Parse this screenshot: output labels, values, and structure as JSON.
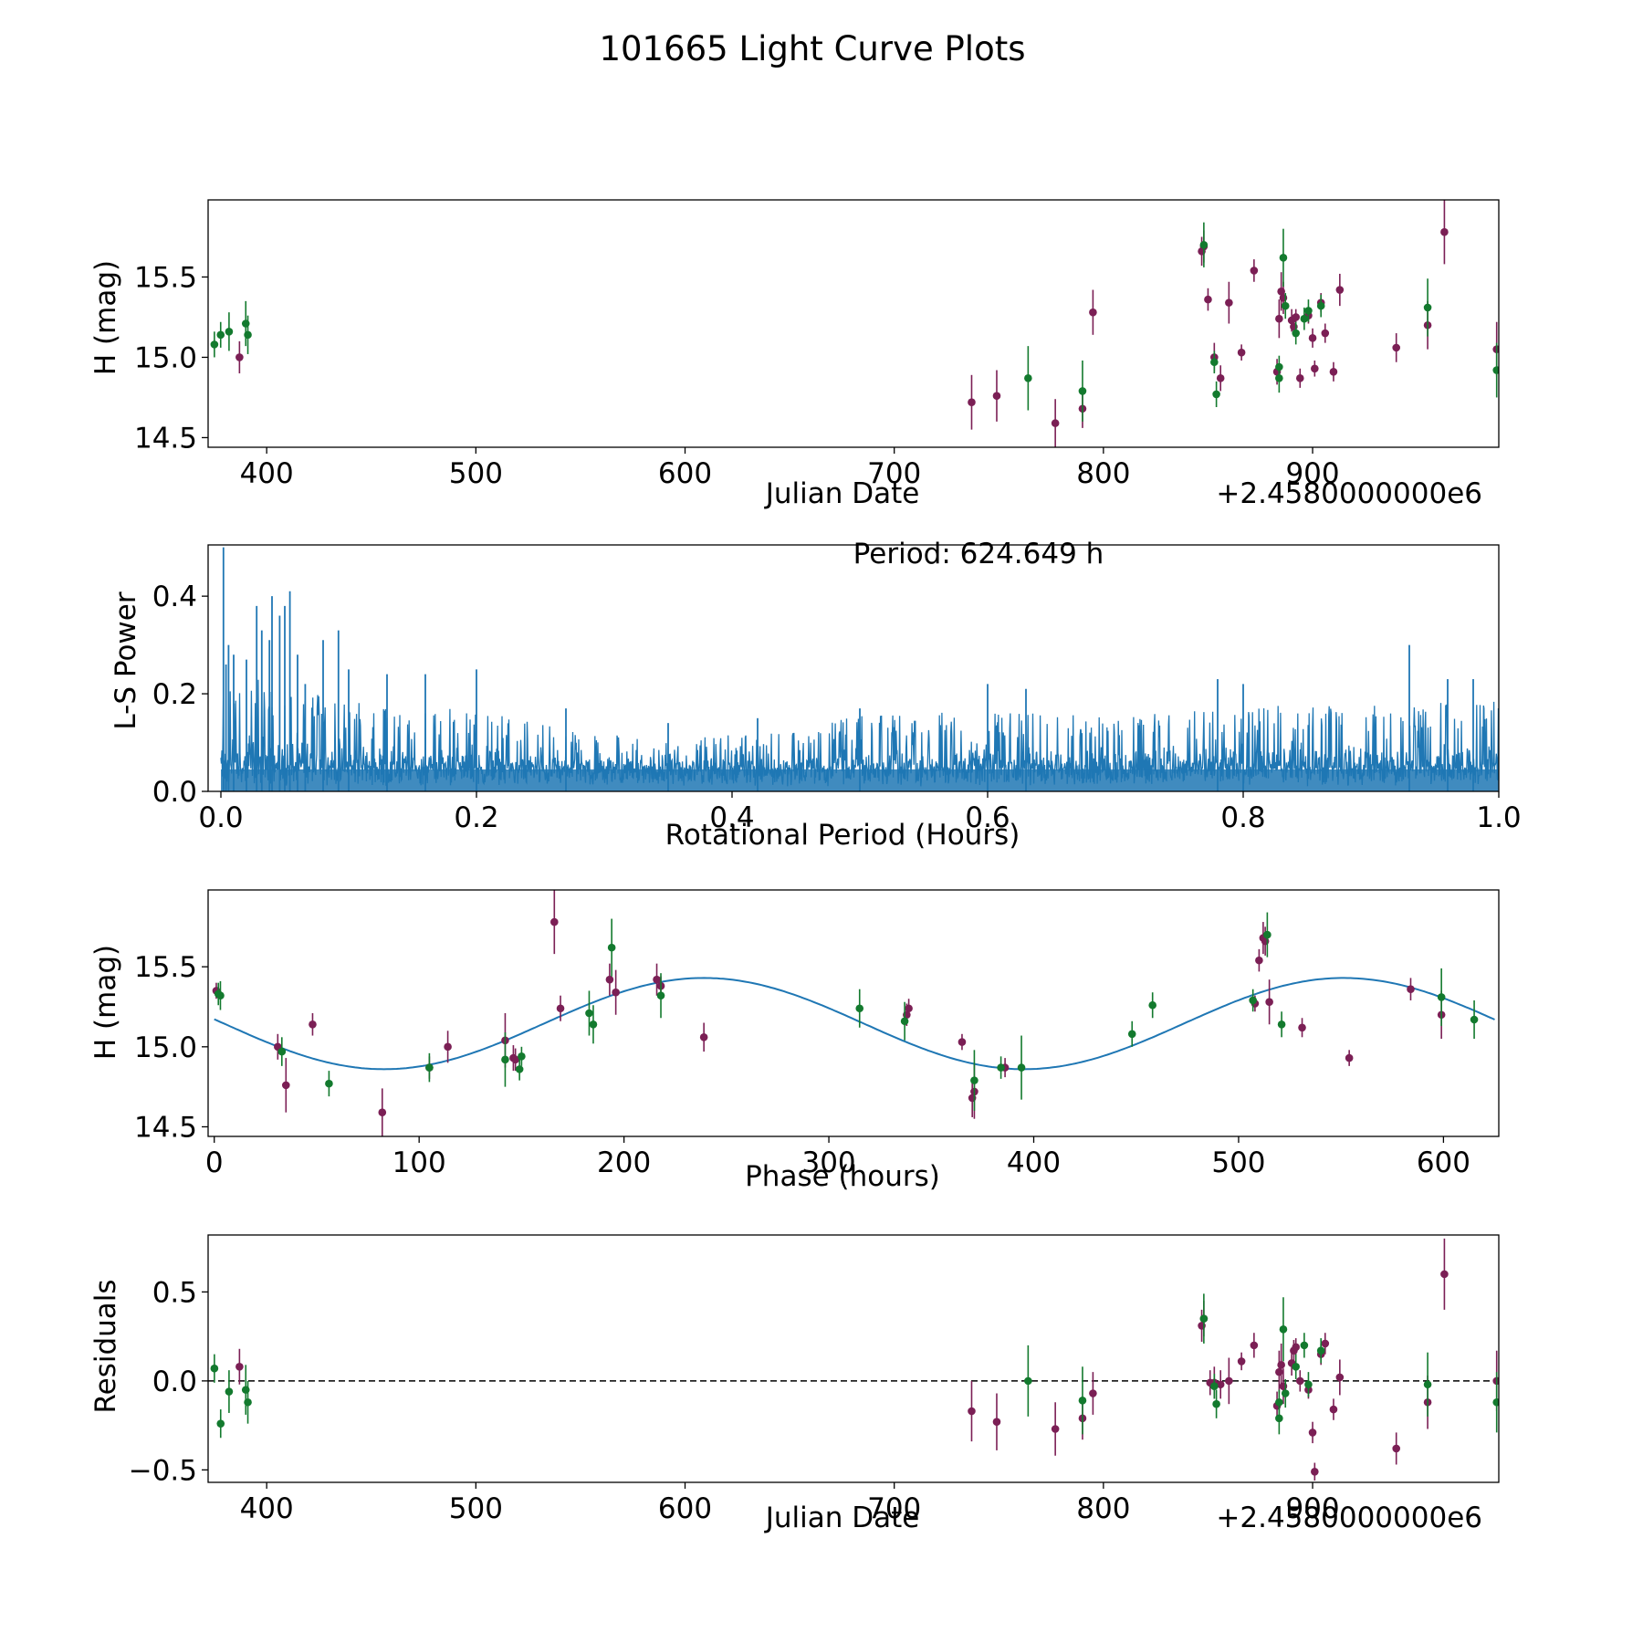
{
  "title": "101665 Light Curve Plots",
  "colors": {
    "band_a": "#7b1f55",
    "band_b": "#137a2e",
    "fit": "#1f77b4",
    "periodogram": "#1f77b4",
    "axis": "#000000"
  },
  "chart_data": [
    {
      "type": "scatter",
      "id": "lightcurve",
      "title": "",
      "xlabel": "Julian Date",
      "ylabel": "H (mag)",
      "offset_label": "+2.4580000000e6",
      "xlim": [
        372,
        989
      ],
      "ylim": [
        14.44,
        15.98
      ],
      "xticks": [
        400,
        500,
        600,
        700,
        800,
        900
      ],
      "yticks": [
        14.5,
        15.0,
        15.5
      ],
      "ytick_labels": [
        "14.5",
        "15.0",
        "15.5"
      ],
      "series": [
        {
          "name": "band_a",
          "color": "#7b1f55",
          "points": [
            [
              387,
              15.0,
              0.1
            ],
            [
              737,
              14.72,
              0.17
            ],
            [
              749,
              14.76,
              0.16
            ],
            [
              777,
              14.59,
              0.15
            ],
            [
              790,
              14.68,
              0.12
            ],
            [
              795,
              15.28,
              0.14
            ],
            [
              847,
              15.66,
              0.09
            ],
            [
              848,
              15.69,
              0.1
            ],
            [
              850,
              15.36,
              0.07
            ],
            [
              853,
              15.0,
              0.09
            ],
            [
              856,
              14.87,
              0.08
            ],
            [
              860,
              15.34,
              0.13
            ],
            [
              866,
              15.03,
              0.05
            ],
            [
              872,
              15.54,
              0.07
            ],
            [
              883,
              14.91,
              0.08
            ],
            [
              884,
              15.24,
              0.12
            ],
            [
              885,
              15.41,
              0.12
            ],
            [
              886,
              15.37,
              0.1
            ],
            [
              890,
              15.23,
              0.07
            ],
            [
              891,
              15.19,
              0.06
            ],
            [
              892,
              15.25,
              0.05
            ],
            [
              894,
              14.87,
              0.06
            ],
            [
              898,
              15.26,
              0.05
            ],
            [
              900,
              15.12,
              0.06
            ],
            [
              901,
              14.93,
              0.05
            ],
            [
              904,
              15.34,
              0.06
            ],
            [
              906,
              15.15,
              0.06
            ],
            [
              910,
              14.91,
              0.06
            ],
            [
              913,
              15.42,
              0.1
            ],
            [
              940,
              15.06,
              0.09
            ],
            [
              955,
              15.2,
              0.15
            ],
            [
              963,
              15.78,
              0.2
            ],
            [
              988,
              15.05,
              0.17
            ]
          ]
        },
        {
          "name": "band_b",
          "color": "#137a2e",
          "points": [
            [
              375,
              15.08,
              0.08
            ],
            [
              378,
              15.14,
              0.08
            ],
            [
              382,
              15.16,
              0.12
            ],
            [
              390,
              15.21,
              0.14
            ],
            [
              391,
              15.14,
              0.12
            ],
            [
              764,
              14.87,
              0.2
            ],
            [
              790,
              14.79,
              0.19
            ],
            [
              848,
              15.7,
              0.14
            ],
            [
              853,
              14.97,
              0.07
            ],
            [
              854,
              14.77,
              0.08
            ],
            [
              884,
              14.87,
              0.09
            ],
            [
              884,
              14.94,
              0.07
            ],
            [
              886,
              15.62,
              0.18
            ],
            [
              887,
              15.32,
              0.08
            ],
            [
              892,
              15.15,
              0.07
            ],
            [
              896,
              15.24,
              0.07
            ],
            [
              898,
              15.29,
              0.07
            ],
            [
              904,
              15.32,
              0.07
            ],
            [
              955,
              15.31,
              0.18
            ],
            [
              988,
              14.92,
              0.17
            ]
          ]
        }
      ]
    },
    {
      "type": "line",
      "id": "periodogram",
      "title": "",
      "xlabel": "Rotational Period (Hours)",
      "ylabel": "L-S Power",
      "annotation": "Period: 624.649 h",
      "xlim": [
        -0.01,
        1.0
      ],
      "ylim": [
        0,
        0.505
      ],
      "xticks": [
        0.0,
        0.2,
        0.4,
        0.6,
        0.8,
        1.0
      ],
      "xtick_labels": [
        "0.0",
        "0.2",
        "0.4",
        "0.6",
        "0.8",
        "1.0"
      ],
      "yticks": [
        0.0,
        0.2,
        0.4
      ],
      "ytick_labels": [
        "0.0",
        "0.2",
        "0.4"
      ],
      "peaks": [
        [
          0.002,
          0.5
        ],
        [
          0.004,
          0.26
        ],
        [
          0.006,
          0.3
        ],
        [
          0.01,
          0.28
        ],
        [
          0.02,
          0.27
        ],
        [
          0.028,
          0.38
        ],
        [
          0.032,
          0.33
        ],
        [
          0.038,
          0.31
        ],
        [
          0.04,
          0.4
        ],
        [
          0.046,
          0.36
        ],
        [
          0.05,
          0.38
        ],
        [
          0.054,
          0.41
        ],
        [
          0.06,
          0.28
        ],
        [
          0.066,
          0.22
        ],
        [
          0.08,
          0.31
        ],
        [
          0.092,
          0.33
        ],
        [
          0.1,
          0.25
        ],
        [
          0.13,
          0.24
        ],
        [
          0.16,
          0.24
        ],
        [
          0.2,
          0.25
        ],
        [
          0.27,
          0.17
        ],
        [
          0.35,
          0.14
        ],
        [
          0.42,
          0.15
        ],
        [
          0.5,
          0.17
        ],
        [
          0.6,
          0.22
        ],
        [
          0.63,
          0.21
        ],
        [
          0.78,
          0.23
        ],
        [
          0.8,
          0.22
        ],
        [
          0.93,
          0.3
        ],
        [
          0.96,
          0.23
        ],
        [
          0.98,
          0.23
        ]
      ],
      "envelope": [
        [
          0.0,
          0.22
        ],
        [
          0.05,
          0.2
        ],
        [
          0.1,
          0.17
        ],
        [
          0.2,
          0.15
        ],
        [
          0.3,
          0.11
        ],
        [
          0.35,
          0.09
        ],
        [
          0.4,
          0.11
        ],
        [
          0.5,
          0.14
        ],
        [
          0.6,
          0.15
        ],
        [
          0.7,
          0.14
        ],
        [
          0.8,
          0.16
        ],
        [
          0.9,
          0.16
        ],
        [
          1.0,
          0.17
        ]
      ]
    },
    {
      "type": "scatter",
      "id": "phased",
      "title": "",
      "xlabel": "Phase (hours)",
      "ylabel": "H (mag)",
      "xlim": [
        -3,
        627
      ],
      "ylim": [
        14.44,
        15.98
      ],
      "xticks": [
        0,
        100,
        200,
        300,
        400,
        500,
        600
      ],
      "yticks": [
        14.5,
        15.0,
        15.5
      ],
      "ytick_labels": [
        "14.5",
        "15.0",
        "15.5"
      ],
      "fit": {
        "period": 624.649,
        "mean": 15.145,
        "amplitude": 0.285,
        "peak_phase": 239
      },
      "series": [
        {
          "name": "band_a",
          "color": "#7b1f55",
          "points": [
            [
              1,
              15.35,
              0.05
            ],
            [
              31,
              15.0,
              0.08
            ],
            [
              35,
              14.76,
              0.17
            ],
            [
              48,
              15.14,
              0.07
            ],
            [
              82,
              14.59,
              0.15
            ],
            [
              105,
              14.87,
              0.07
            ],
            [
              114,
              15.0,
              0.1
            ],
            [
              142,
              15.04,
              0.17
            ],
            [
              146,
              14.93,
              0.08
            ],
            [
              147,
              14.92,
              0.07
            ],
            [
              166,
              15.78,
              0.2
            ],
            [
              169,
              15.24,
              0.08
            ],
            [
              193,
              15.42,
              0.1
            ],
            [
              196,
              15.34,
              0.14
            ],
            [
              216,
              15.42,
              0.1
            ],
            [
              218,
              15.38,
              0.06
            ],
            [
              239,
              15.06,
              0.09
            ],
            [
              338,
              15.2,
              0.07
            ],
            [
              339,
              15.24,
              0.06
            ],
            [
              365,
              15.03,
              0.05
            ],
            [
              370,
              14.68,
              0.12
            ],
            [
              371,
              14.72,
              0.17
            ],
            [
              386,
              14.87,
              0.06
            ],
            [
              508,
              15.27,
              0.05
            ],
            [
              510,
              15.54,
              0.07
            ],
            [
              512,
              15.68,
              0.1
            ],
            [
              513,
              15.66,
              0.09
            ],
            [
              515,
              15.28,
              0.14
            ],
            [
              531,
              15.12,
              0.06
            ],
            [
              554,
              14.93,
              0.05
            ],
            [
              584,
              15.36,
              0.07
            ],
            [
              599,
              15.2,
              0.15
            ]
          ]
        },
        {
          "name": "band_b",
          "color": "#137a2e",
          "points": [
            [
              2,
              15.33,
              0.07
            ],
            [
              3,
              15.32,
              0.09
            ],
            [
              33,
              14.97,
              0.09
            ],
            [
              56,
              14.77,
              0.08
            ],
            [
              105,
              14.87,
              0.09
            ],
            [
              142,
              14.92,
              0.17
            ],
            [
              149,
              14.86,
              0.07
            ],
            [
              150,
              14.94,
              0.06
            ],
            [
              183,
              15.21,
              0.14
            ],
            [
              185,
              15.14,
              0.12
            ],
            [
              194,
              15.62,
              0.18
            ],
            [
              218,
              15.32,
              0.14
            ],
            [
              315,
              15.24,
              0.12
            ],
            [
              337,
              15.16,
              0.12
            ],
            [
              371,
              14.79,
              0.19
            ],
            [
              384,
              14.87,
              0.07
            ],
            [
              394,
              14.87,
              0.2
            ],
            [
              448,
              15.08,
              0.08
            ],
            [
              458,
              15.26,
              0.08
            ],
            [
              507,
              15.29,
              0.07
            ],
            [
              514,
              15.7,
              0.14
            ],
            [
              521,
              15.14,
              0.08
            ],
            [
              599,
              15.31,
              0.18
            ],
            [
              615,
              15.17,
              0.12
            ]
          ]
        }
      ]
    },
    {
      "type": "scatter",
      "id": "residuals",
      "title": "",
      "xlabel": "Julian Date",
      "ylabel": "Residuals",
      "offset_label": "+2.4580000000e6",
      "xlim": [
        372,
        989
      ],
      "ylim": [
        -0.57,
        0.82
      ],
      "xticks": [
        400,
        500,
        600,
        700,
        800,
        900
      ],
      "yticks": [
        -0.5,
        0.0,
        0.5
      ],
      "ytick_labels": [
        "−0.5",
        "0.0",
        "0.5"
      ],
      "reference_line": 0.0,
      "series": [
        {
          "name": "band_a",
          "color": "#7b1f55",
          "points": [
            [
              387,
              0.08,
              0.1
            ],
            [
              737,
              -0.17,
              0.17
            ],
            [
              749,
              -0.23,
              0.16
            ],
            [
              777,
              -0.27,
              0.15
            ],
            [
              790,
              -0.21,
              0.12
            ],
            [
              795,
              -0.07,
              0.12
            ],
            [
              847,
              0.31,
              0.09
            ],
            [
              848,
              0.35,
              0.1
            ],
            [
              851,
              -0.01,
              0.07
            ],
            [
              853,
              -0.01,
              0.09
            ],
            [
              856,
              -0.02,
              0.08
            ],
            [
              860,
              0.0,
              0.13
            ],
            [
              866,
              0.11,
              0.05
            ],
            [
              872,
              0.2,
              0.07
            ],
            [
              883,
              -0.14,
              0.08
            ],
            [
              884,
              0.05,
              0.12
            ],
            [
              885,
              0.09,
              0.12
            ],
            [
              886,
              -0.03,
              0.1
            ],
            [
              890,
              0.1,
              0.07
            ],
            [
              891,
              0.17,
              0.06
            ],
            [
              892,
              0.19,
              0.05
            ],
            [
              894,
              0.0,
              0.06
            ],
            [
              898,
              -0.05,
              0.05
            ],
            [
              900,
              -0.29,
              0.06
            ],
            [
              901,
              -0.51,
              0.05
            ],
            [
              904,
              0.15,
              0.06
            ],
            [
              906,
              0.21,
              0.06
            ],
            [
              910,
              -0.16,
              0.06
            ],
            [
              913,
              0.02,
              0.1
            ],
            [
              940,
              -0.38,
              0.09
            ],
            [
              955,
              -0.12,
              0.15
            ],
            [
              963,
              0.6,
              0.2
            ],
            [
              988,
              0.0,
              0.17
            ]
          ]
        },
        {
          "name": "band_b",
          "color": "#137a2e",
          "points": [
            [
              375,
              0.07,
              0.08
            ],
            [
              378,
              -0.24,
              0.08
            ],
            [
              382,
              -0.06,
              0.12
            ],
            [
              390,
              -0.05,
              0.14
            ],
            [
              391,
              -0.12,
              0.12
            ],
            [
              764,
              0.0,
              0.2
            ],
            [
              790,
              -0.11,
              0.19
            ],
            [
              848,
              0.35,
              0.14
            ],
            [
              853,
              -0.03,
              0.07
            ],
            [
              854,
              -0.13,
              0.08
            ],
            [
              884,
              -0.21,
              0.09
            ],
            [
              884,
              -0.12,
              0.07
            ],
            [
              886,
              0.29,
              0.18
            ],
            [
              887,
              -0.07,
              0.08
            ],
            [
              892,
              0.08,
              0.07
            ],
            [
              896,
              0.2,
              0.07
            ],
            [
              898,
              -0.02,
              0.07
            ],
            [
              904,
              0.17,
              0.07
            ],
            [
              955,
              -0.02,
              0.18
            ],
            [
              988,
              -0.12,
              0.17
            ]
          ]
        }
      ]
    }
  ]
}
